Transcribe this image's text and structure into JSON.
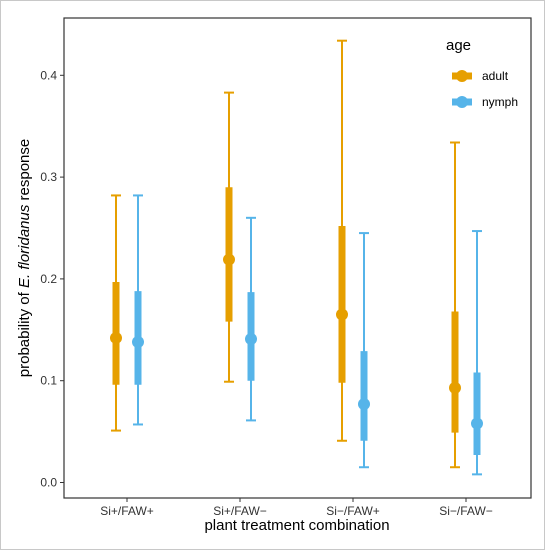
{
  "chart_data": {
    "type": "pointrange",
    "xlabel": "plant treatment combination",
    "ylabel_prefix": "probability of ",
    "ylabel_italic": "E. floridanus",
    "ylabel_suffix": " response",
    "ylim": [
      0,
      0.45
    ],
    "yticks": [
      "0.0",
      "0.1",
      "0.2",
      "0.3",
      "0.4"
    ],
    "ytick_values": [
      0,
      0.1,
      0.2,
      0.3,
      0.4
    ],
    "categories": [
      "Si+/FAW+",
      "Si+/FAW−",
      "Si−/FAW+",
      "Si−/FAW−"
    ],
    "legend_title": "age",
    "legend_position": "top-right",
    "grid": false,
    "series": [
      {
        "name": "adult",
        "color": "#E69F00",
        "estimate": [
          0.142,
          0.219,
          0.165,
          0.093
        ],
        "inner_low": [
          0.096,
          0.158,
          0.098,
          0.049
        ],
        "inner_high": [
          0.197,
          0.29,
          0.252,
          0.168
        ],
        "outer_low": [
          0.051,
          0.099,
          0.041,
          0.015
        ],
        "outer_high": [
          0.282,
          0.383,
          0.434,
          0.334
        ]
      },
      {
        "name": "nymph",
        "color": "#56B4E9",
        "estimate": [
          0.138,
          0.141,
          0.077,
          0.058
        ],
        "inner_low": [
          0.096,
          0.1,
          0.041,
          0.027
        ],
        "inner_high": [
          0.188,
          0.187,
          0.129,
          0.108
        ],
        "outer_low": [
          0.057,
          0.061,
          0.015,
          0.008
        ],
        "outer_high": [
          0.282,
          0.26,
          0.245,
          0.247
        ]
      }
    ]
  }
}
